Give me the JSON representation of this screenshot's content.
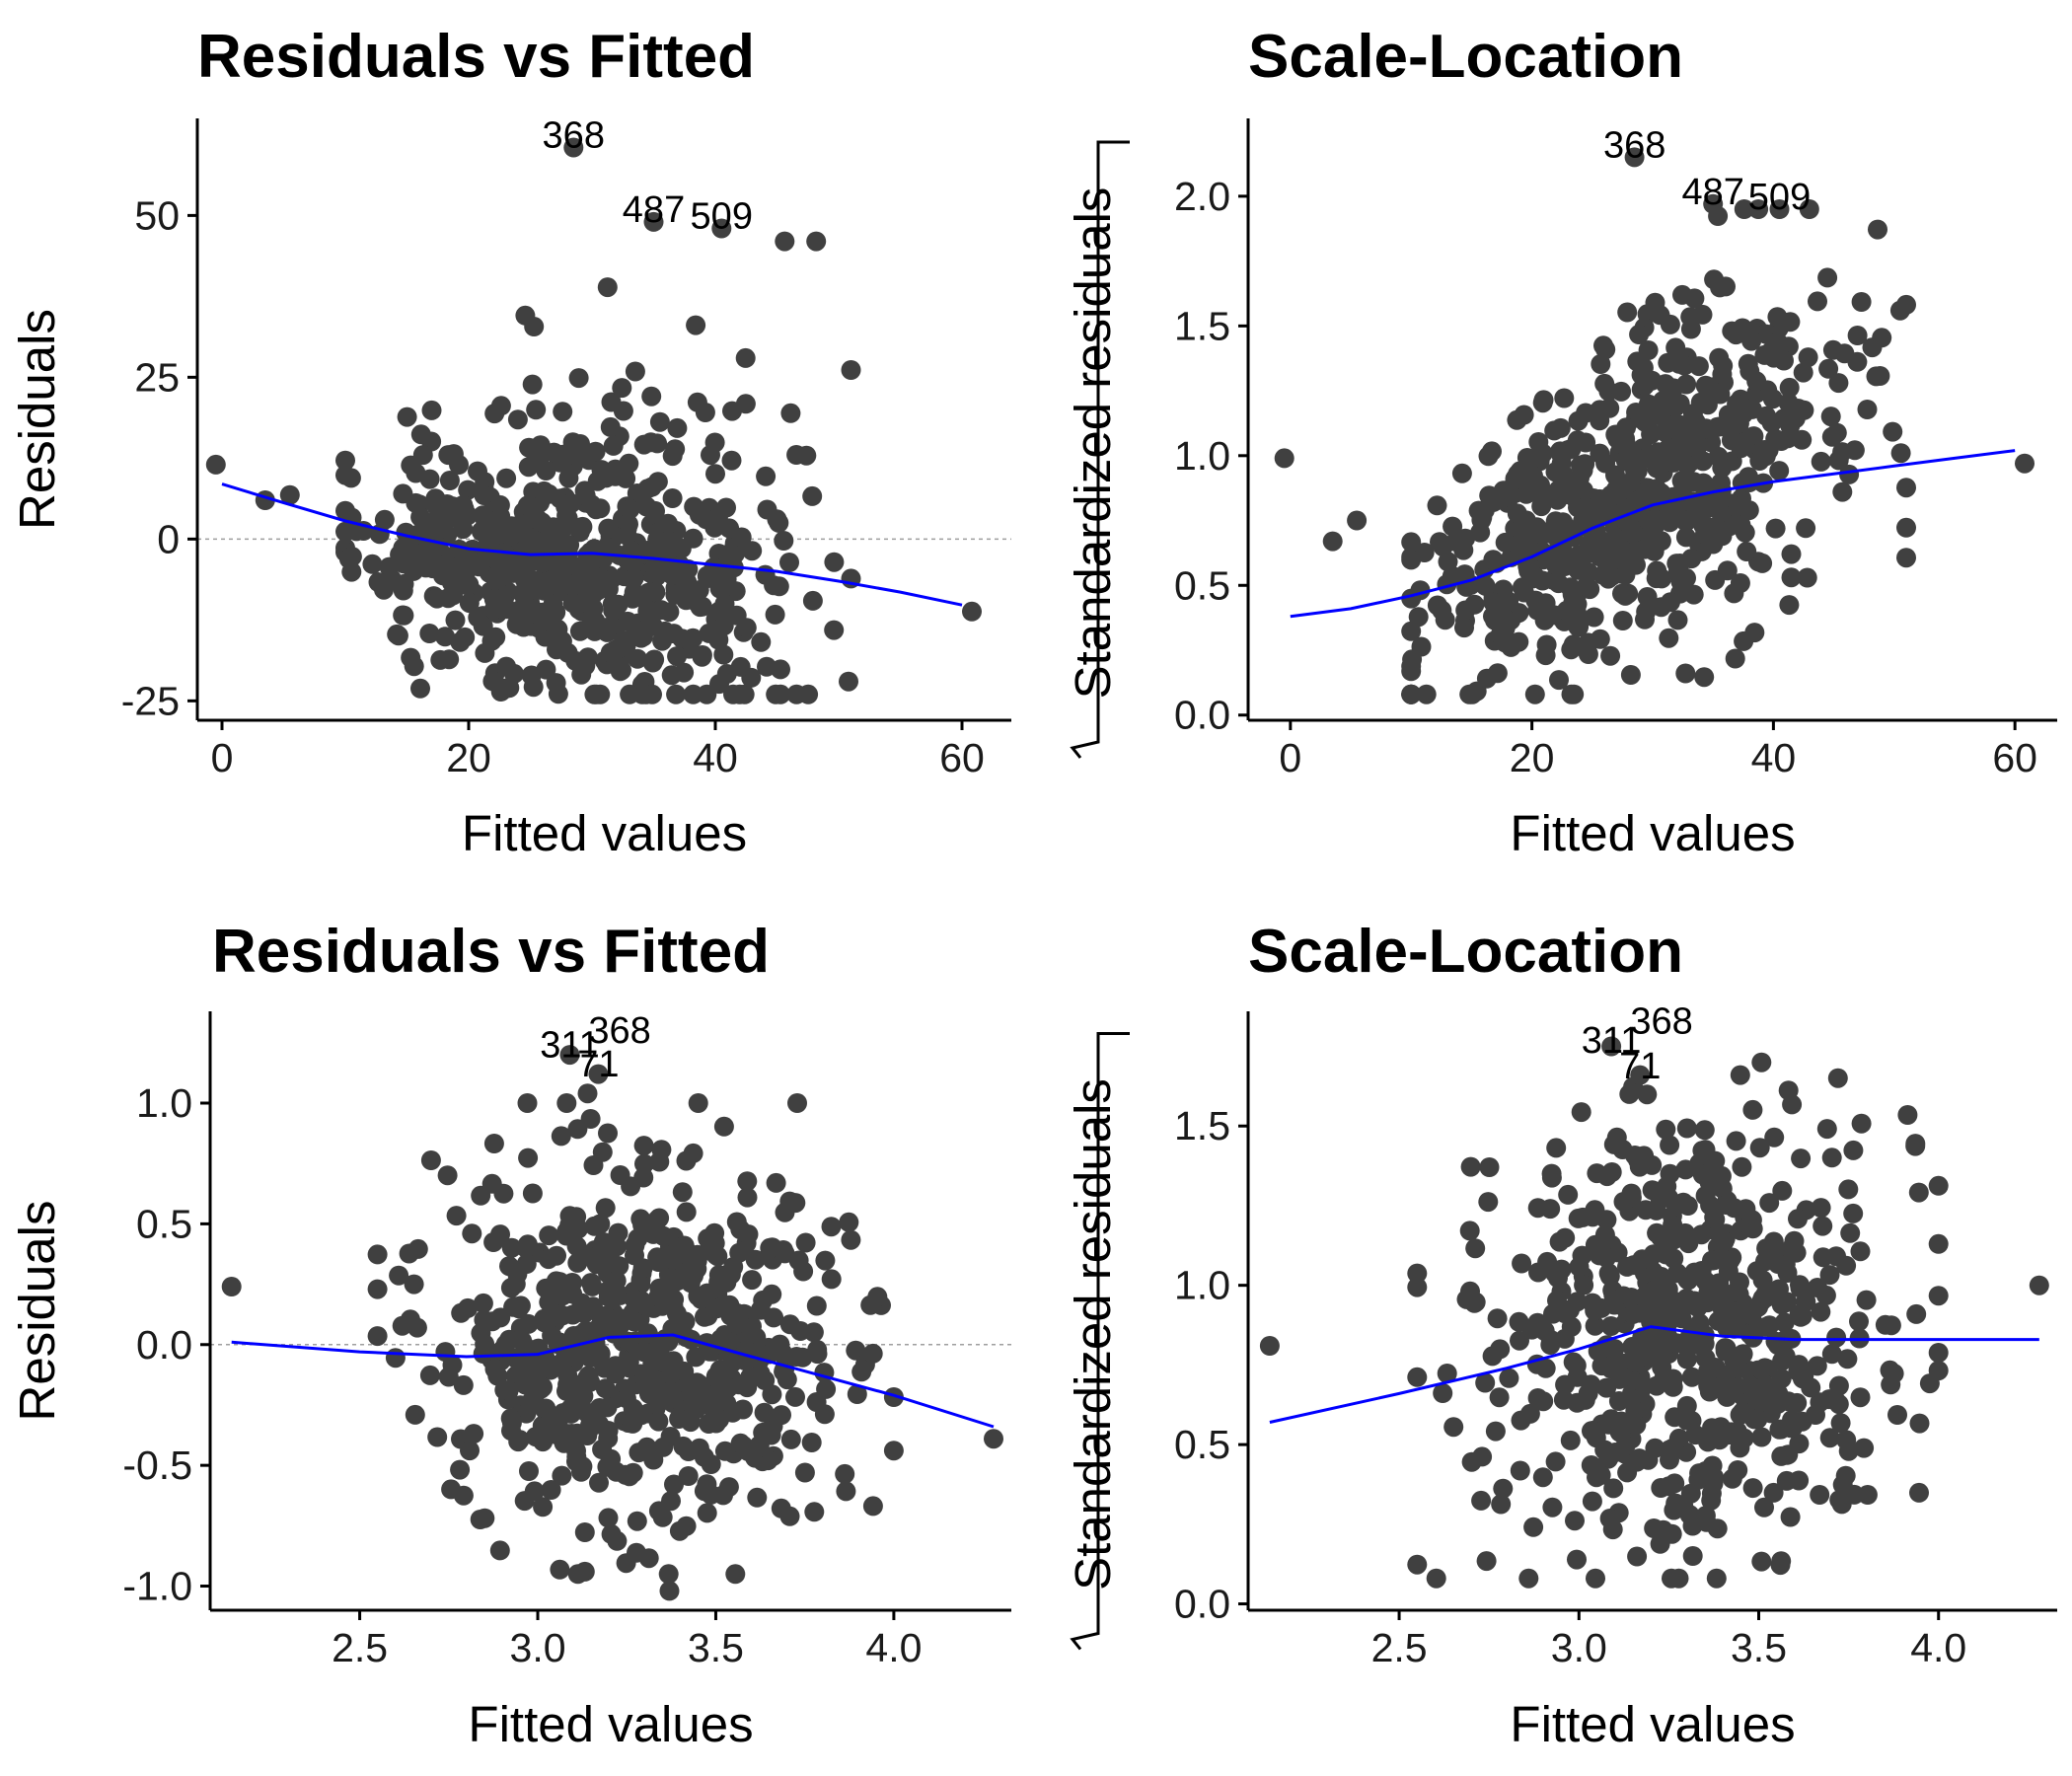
{
  "colors": {
    "point": "#404040",
    "smooth": "#0000ff",
    "refline": "#9e9e9e"
  },
  "chart_data": [
    {
      "type": "scatter",
      "title": "Residuals vs Fitted",
      "xlabel": "Fitted values",
      "ylabel": "Residuals",
      "ylabel_sqrt": false,
      "xlim": [
        -2,
        64
      ],
      "ylim": [
        -28,
        65
      ],
      "xticks": [
        0,
        20,
        40,
        60
      ],
      "xtick_labels": [
        "0",
        "20",
        "40",
        "60"
      ],
      "yticks": [
        -25,
        0,
        25,
        50
      ],
      "ytick_labels": [
        "-25",
        "0",
        "25",
        "50"
      ],
      "reference_line": 0,
      "grid": false,
      "legend": false,
      "n_points": 600,
      "cloud": {
        "xmean": 28,
        "xsd": 8.5,
        "xmin": 10,
        "xmax": 51,
        "noise": 10,
        "skew": 0.6,
        "clipLow": -24,
        "clipHigh": 46,
        "seed": 11
      },
      "extra_points": [
        [
          -0.5,
          11.5
        ],
        [
          3.5,
          6
        ],
        [
          5.5,
          6.8
        ],
        [
          60.8,
          -11.2
        ],
        [
          28.5,
          60.5
        ],
        [
          35,
          49
        ],
        [
          40.5,
          48
        ]
      ],
      "smooth": {
        "x": [
          0,
          5,
          10,
          15,
          20,
          25,
          30,
          35,
          40,
          45,
          50,
          55,
          60
        ],
        "y": [
          8.5,
          5.6,
          2.8,
          0.5,
          -1.5,
          -2.4,
          -2.2,
          -3.0,
          -4.0,
          -5.0,
          -6.5,
          -8.2,
          -10.2
        ]
      },
      "labels": [
        {
          "text": "368",
          "x": 28.5,
          "y": 60.5
        },
        {
          "text": "487",
          "x": 35,
          "y": 49
        },
        {
          "text": "509",
          "x": 40.5,
          "y": 48
        }
      ]
    },
    {
      "type": "scatter",
      "title": "Scale-Location",
      "xlabel": "Fitted values",
      "ylabel": "Standardized residuals",
      "ylabel_sqrt": true,
      "xlim": [
        -3.5,
        63.5
      ],
      "ylim": [
        -0.02,
        2.3
      ],
      "xticks": [
        0,
        20,
        40,
        60
      ],
      "xtick_labels": [
        "0",
        "20",
        "40",
        "60"
      ],
      "yticks": [
        0.0,
        0.5,
        1.0,
        1.5,
        2.0
      ],
      "ytick_labels": [
        "0.0",
        "0.5",
        "1.0",
        "1.5",
        "2.0"
      ],
      "reference_line": null,
      "grid": false,
      "legend": false,
      "n_points": 600,
      "cloud": {
        "xmean": 28,
        "xsd": 8.5,
        "xmin": 10,
        "xmax": 51,
        "noise": 0.38,
        "trend": 0.022,
        "base": 0.2,
        "clipLow": 0.08,
        "clipHigh": 1.95,
        "seed": 23
      },
      "extra_points": [
        [
          -0.5,
          0.99
        ],
        [
          3.5,
          0.67
        ],
        [
          5.5,
          0.75
        ],
        [
          60.8,
          0.97
        ],
        [
          28.5,
          2.15
        ],
        [
          35,
          1.97
        ],
        [
          40.5,
          1.95
        ]
      ],
      "smooth": {
        "x": [
          0,
          5,
          10,
          15,
          20,
          25,
          30,
          35,
          40,
          45,
          50,
          55,
          60
        ],
        "y": [
          0.38,
          0.41,
          0.46,
          0.52,
          0.61,
          0.72,
          0.81,
          0.86,
          0.9,
          0.93,
          0.96,
          0.99,
          1.02
        ]
      },
      "labels": [
        {
          "text": "368",
          "x": 28.5,
          "y": 2.15
        },
        {
          "text": "487",
          "x": 35,
          "y": 1.97
        },
        {
          "text": "509",
          "x": 40.5,
          "y": 1.95
        }
      ]
    },
    {
      "type": "scatter",
      "title": "Residuals vs Fitted",
      "xlabel": "Fitted values",
      "ylabel": "Residuals",
      "ylabel_sqrt": false,
      "xlim": [
        2.08,
        4.33
      ],
      "ylim": [
        -1.1,
        1.38
      ],
      "xticks": [
        2.5,
        3.0,
        3.5,
        4.0
      ],
      "xtick_labels": [
        "2.5",
        "3.0",
        "3.5",
        "4.0"
      ],
      "yticks": [
        -1.0,
        -0.5,
        0.0,
        0.5,
        1.0
      ],
      "ytick_labels": [
        "-1.0",
        "-0.5",
        "0.0",
        "0.5",
        "1.0"
      ],
      "reference_line": 0,
      "grid": false,
      "legend": false,
      "n_points": 600,
      "cloud": {
        "xmean": 3.3,
        "xsd": 0.28,
        "xmin": 2.55,
        "xmax": 4.0,
        "noise": 0.37,
        "clipLow": -0.95,
        "clipHigh": 1.0,
        "seed": 37
      },
      "extra_points": [
        [
          2.14,
          0.24
        ],
        [
          4.28,
          -0.39
        ],
        [
          3.09,
          1.2
        ],
        [
          3.17,
          1.12
        ],
        [
          3.14,
          1.04
        ],
        [
          3.37,
          -1.02
        ]
      ],
      "smooth": {
        "x": [
          2.14,
          2.5,
          2.8,
          3.0,
          3.2,
          3.38,
          3.6,
          3.8,
          4.0,
          4.28
        ],
        "y": [
          0.01,
          -0.03,
          -0.05,
          -0.04,
          0.03,
          0.04,
          -0.05,
          -0.13,
          -0.21,
          -0.34
        ]
      },
      "labels": [
        {
          "text": "311",
          "x": 3.09,
          "y": 1.19
        },
        {
          "text": "368",
          "x": 3.23,
          "y": 1.25
        },
        {
          "text": "71",
          "x": 3.17,
          "y": 1.11
        }
      ]
    },
    {
      "type": "scatter",
      "title": "Scale-Location",
      "xlabel": "Fitted values",
      "ylabel": "Standardized residuals",
      "ylabel_sqrt": true,
      "xlim": [
        2.08,
        4.33
      ],
      "ylim": [
        -0.02,
        1.86
      ],
      "xticks": [
        2.5,
        3.0,
        3.5,
        4.0
      ],
      "xtick_labels": [
        "2.5",
        "3.0",
        "3.5",
        "4.0"
      ],
      "yticks": [
        0.0,
        0.5,
        1.0,
        1.5
      ],
      "ytick_labels": [
        "0.0",
        "0.5",
        "1.0",
        "1.5"
      ],
      "reference_line": null,
      "grid": false,
      "legend": false,
      "n_points": 600,
      "cloud": {
        "xmean": 3.3,
        "xsd": 0.28,
        "xmin": 2.55,
        "xmax": 4.0,
        "noise": 0.33,
        "base": 0.85,
        "clipLow": 0.08,
        "clipHigh": 1.7,
        "seed": 53
      },
      "extra_points": [
        [
          2.14,
          0.81
        ],
        [
          4.28,
          1.0
        ],
        [
          3.09,
          1.75
        ],
        [
          3.17,
          1.66
        ],
        [
          3.14,
          1.6
        ],
        [
          2.86,
          0.08
        ]
      ],
      "smooth": {
        "x": [
          2.14,
          2.5,
          2.8,
          3.0,
          3.2,
          3.4,
          3.6,
          3.8,
          4.0,
          4.28
        ],
        "y": [
          0.57,
          0.66,
          0.74,
          0.8,
          0.87,
          0.84,
          0.83,
          0.83,
          0.83,
          0.83
        ]
      },
      "labels": [
        {
          "text": "311",
          "x": 3.09,
          "y": 1.73
        },
        {
          "text": "368",
          "x": 3.23,
          "y": 1.79
        },
        {
          "text": "71",
          "x": 3.17,
          "y": 1.65
        }
      ]
    }
  ]
}
